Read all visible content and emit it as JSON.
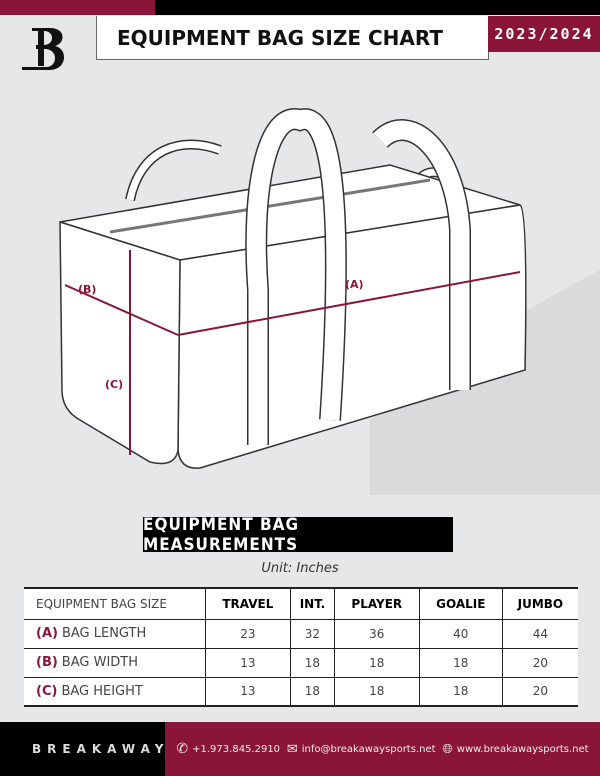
{
  "header": {
    "title": "EQUIPMENT BAG SIZE CHART",
    "season": "2023/2024"
  },
  "diagram": {
    "label_a": "(A)",
    "label_b": "(B)",
    "label_c": "(C)",
    "accent": "#8a1538"
  },
  "measurements": {
    "title": "EQUIPMENT BAG MEASUREMENTS",
    "unit": "Unit: Inches",
    "header": [
      "EQUIPMENT BAG SIZE",
      "TRAVEL",
      "INT.",
      "PLAYER",
      "GOALIE",
      "JUMBO"
    ],
    "rows": [
      {
        "letter": "(A)",
        "label": "BAG LENGTH",
        "values": [
          "23",
          "32",
          "36",
          "40",
          "44"
        ]
      },
      {
        "letter": "(B)",
        "label": "BAG WIDTH",
        "values": [
          "13",
          "18",
          "18",
          "18",
          "20"
        ]
      },
      {
        "letter": "(C)",
        "label": "BAG HEIGHT",
        "values": [
          "13",
          "18",
          "18",
          "18",
          "20"
        ]
      }
    ]
  },
  "footer": {
    "brand": "BREAKAWAY",
    "phone": "+1.973.845.2910",
    "email": "info@breakawaysports.net",
    "website": "www.breakawaysports.net"
  }
}
